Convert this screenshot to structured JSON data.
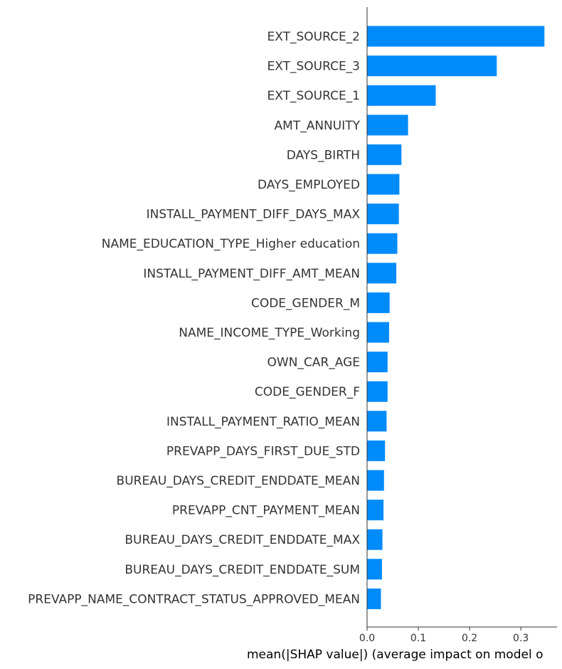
{
  "chart_data": {
    "type": "bar",
    "orientation": "horizontal",
    "title": "",
    "xlabel": "mean(|SHAP value|) (average impact on model o",
    "ylabel": "",
    "xlim": [
      0,
      0.35
    ],
    "xticks": [
      "0.0",
      "0.1",
      "0.2",
      "0.3"
    ],
    "xtick_values": [
      0.0,
      0.1,
      0.2,
      0.3
    ],
    "grid": false,
    "legend": "none",
    "bar_color": "#008bfb",
    "categories": [
      "EXT_SOURCE_2",
      "EXT_SOURCE_3",
      "EXT_SOURCE_1",
      "AMT_ANNUITY",
      "DAYS_BIRTH",
      "DAYS_EMPLOYED",
      "INSTALL_PAYMENT_DIFF_DAYS_MAX",
      "NAME_EDUCATION_TYPE_Higher education",
      "INSTALL_PAYMENT_DIFF_AMT_MEAN",
      "CODE_GENDER_M",
      "NAME_INCOME_TYPE_Working",
      "OWN_CAR_AGE",
      "CODE_GENDER_F",
      "INSTALL_PAYMENT_RATIO_MEAN",
      "PREVAPP_DAYS_FIRST_DUE_STD",
      "BUREAU_DAYS_CREDIT_ENDDATE_MEAN",
      "PREVAPP_CNT_PAYMENT_MEAN",
      "BUREAU_DAYS_CREDIT_ENDDATE_MAX",
      "BUREAU_DAYS_CREDIT_ENDDATE_SUM",
      "PREVAPP_NAME_CONTRACT_STATUS_APPROVED_MEAN"
    ],
    "values": [
      0.346,
      0.253,
      0.134,
      0.08,
      0.067,
      0.063,
      0.062,
      0.059,
      0.057,
      0.044,
      0.043,
      0.04,
      0.04,
      0.038,
      0.035,
      0.033,
      0.032,
      0.03,
      0.029,
      0.027
    ]
  }
}
